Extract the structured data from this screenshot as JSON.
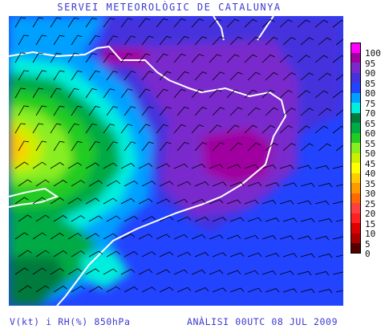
{
  "header": {
    "title": "SERVEI METEOROLÒGIC DE CATALUNYA"
  },
  "footer": {
    "left": "V(kt) i RH(%) 850hPa",
    "right": "ANÀLISI 00UTC 08 JUL 2009"
  },
  "legend": {
    "labels": [
      "100",
      "95",
      "90",
      "85",
      "80",
      "75",
      "70",
      "65",
      "60",
      "55",
      "50",
      "45",
      "40",
      "35",
      "30",
      "25",
      "20",
      "15",
      "10",
      "5",
      "0"
    ],
    "colors": [
      "#ff00ff",
      "#a000a0",
      "#7a2acc",
      "#4433dd",
      "#2244ff",
      "#00a0ff",
      "#00eedd",
      "#007a3d",
      "#00aa44",
      "#22cc22",
      "#88ee22",
      "#ccee00",
      "#ffff00",
      "#ffcc00",
      "#ff9900",
      "#ff6a00",
      "#ff4040",
      "#ff2020",
      "#dd0000",
      "#aa0000",
      "#550000"
    ]
  },
  "map": {
    "region": "Catalunya",
    "variables": [
      "wind barbs (kt)",
      "relative humidity (%)"
    ],
    "level": "850hPa"
  }
}
